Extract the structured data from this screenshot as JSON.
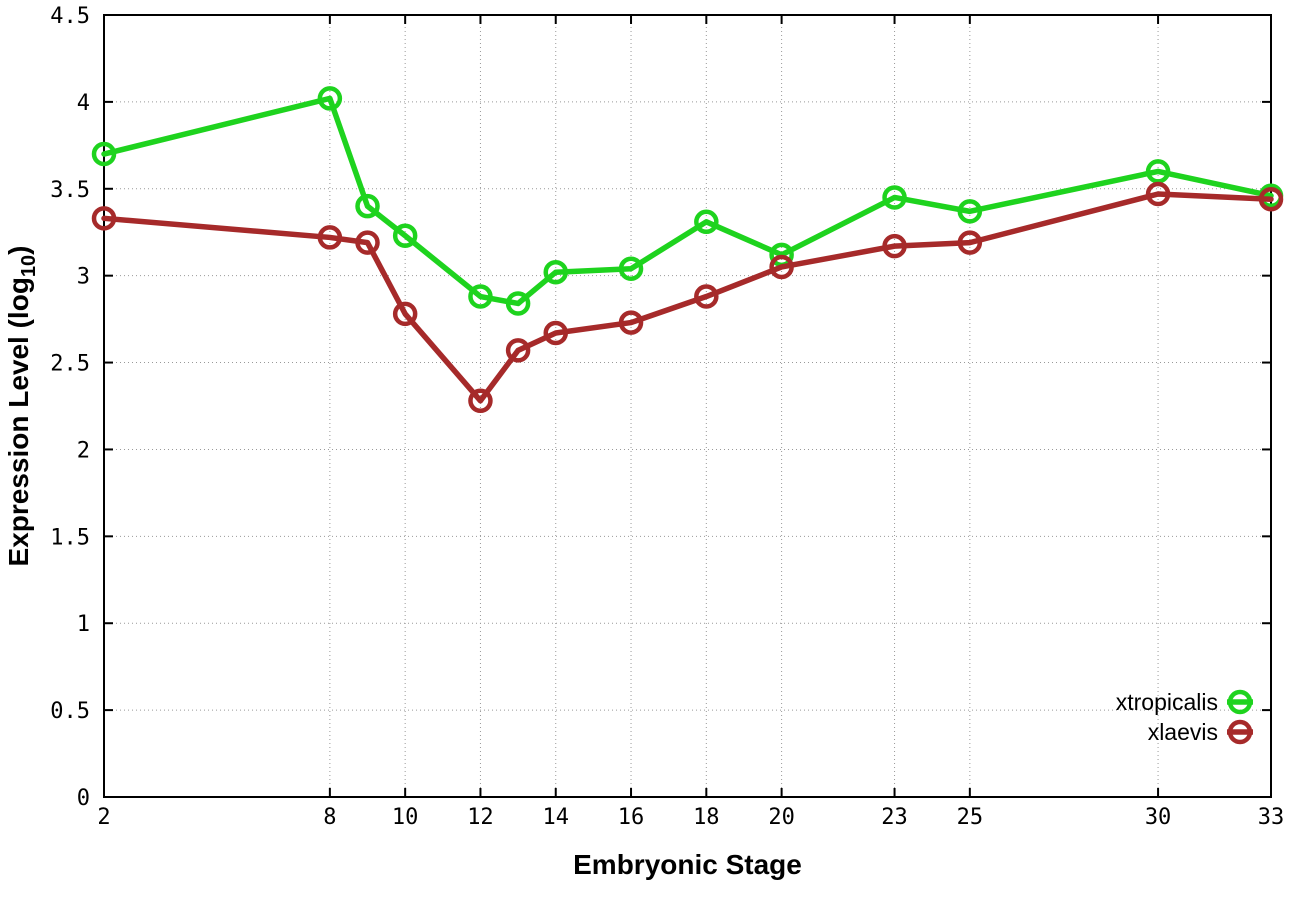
{
  "chart_data": {
    "type": "line",
    "title": "",
    "xlabel": "Embryonic Stage",
    "ylabel": "Expression Level (log10)",
    "ylabel_parts": {
      "main": "Expression Level (log",
      "sub": "10",
      "end": ")"
    },
    "x": [
      2,
      8,
      9,
      10,
      12,
      13,
      14,
      16,
      18,
      20,
      23,
      25,
      30,
      33
    ],
    "series": [
      {
        "name": "xtropicalis",
        "color": "#1ed31e",
        "values": [
          3.7,
          4.02,
          3.4,
          3.23,
          2.88,
          2.84,
          3.02,
          3.04,
          3.31,
          3.12,
          3.45,
          3.37,
          3.6,
          3.46
        ]
      },
      {
        "name": "xlaevis",
        "color": "#a62a2a",
        "values": [
          3.33,
          3.22,
          3.19,
          2.78,
          2.28,
          2.57,
          2.67,
          2.73,
          2.88,
          3.05,
          3.17,
          3.19,
          3.47,
          3.44
        ]
      }
    ],
    "x_tick_values": [
      2,
      8,
      10,
      12,
      14,
      16,
      18,
      20,
      23,
      25,
      30,
      33
    ],
    "x_tick_labels": [
      "2",
      "8",
      "10",
      "12",
      "14",
      "16",
      "18",
      "20",
      "23",
      "25",
      "30",
      "33"
    ],
    "y_tick_values": [
      0,
      0.5,
      1,
      1.5,
      2,
      2.5,
      3,
      3.5,
      4,
      4.5
    ],
    "y_tick_labels": [
      "0",
      "0.5",
      "1",
      "1.5",
      "2",
      "2.5",
      "3",
      "3.5",
      "4",
      "4.5"
    ],
    "xlim": [
      2,
      33
    ],
    "ylim": [
      0,
      4.5
    ],
    "grid": true,
    "grid_style": "dotted",
    "legend_position": "bottom-right",
    "marker": "open-circle",
    "background": "#ffffff",
    "frame_color": "#000000",
    "grid_color": "#999999",
    "text_color": "#000000"
  }
}
